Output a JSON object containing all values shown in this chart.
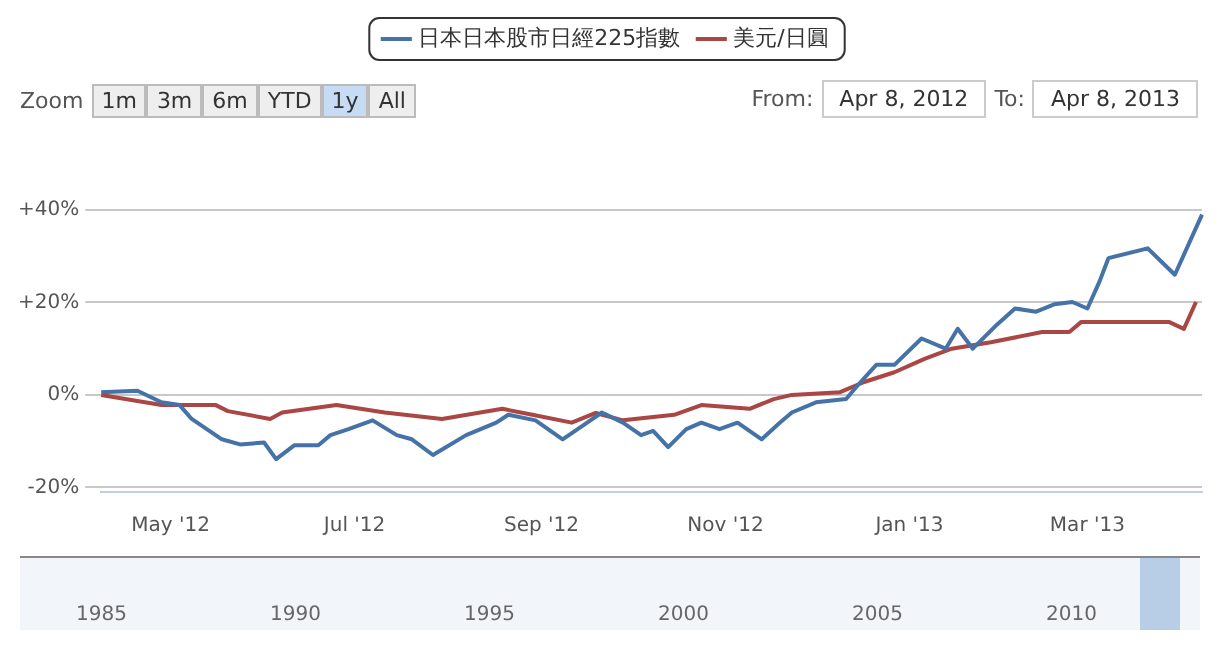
{
  "chart_data": {
    "type": "line",
    "legend": "top",
    "grid": "y",
    "marker": "none",
    "line_style": "solid",
    "xlim": [
      "2012-04-08",
      "2013-04-08"
    ],
    "xticks": [
      {
        "value": "2012-05-01",
        "label": "May '12"
      },
      {
        "value": "2012-07-01",
        "label": "Jul '12"
      },
      {
        "value": "2012-09-01",
        "label": "Sep '12"
      },
      {
        "value": "2012-11-01",
        "label": "Nov '12"
      },
      {
        "value": "2013-01-01",
        "label": "Jan '13"
      },
      {
        "value": "2013-03-01",
        "label": "Mar '13"
      }
    ],
    "ylim": [
      -21,
      40
    ],
    "yticks": [
      {
        "value": -20,
        "label": "-20%"
      },
      {
        "value": 0,
        "label": "0%"
      },
      {
        "value": 20,
        "label": "+20%"
      },
      {
        "value": 40,
        "label": "+40%"
      }
    ],
    "series": [
      {
        "name": "日本日本股市日經225指數",
        "color": "#4572a7",
        "x": [
          "2012-04-08",
          "2012-04-20",
          "2012-04-28",
          "2012-05-04",
          "2012-05-08",
          "2012-05-18",
          "2012-05-24",
          "2012-06-01",
          "2012-06-05",
          "2012-06-11",
          "2012-06-19",
          "2012-06-23",
          "2012-06-29",
          "2012-07-07",
          "2012-07-15",
          "2012-07-20",
          "2012-07-27",
          "2012-08-07",
          "2012-08-17",
          "2012-08-21",
          "2012-08-30",
          "2012-09-08",
          "2012-09-13",
          "2012-09-21",
          "2012-09-28",
          "2012-10-04",
          "2012-10-08",
          "2012-10-13",
          "2012-10-19",
          "2012-10-24",
          "2012-10-30",
          "2012-11-05",
          "2012-11-13",
          "2012-11-19",
          "2012-11-23",
          "2012-12-01",
          "2012-12-11",
          "2012-12-15",
          "2012-12-21",
          "2012-12-27",
          "2013-01-05",
          "2013-01-13",
          "2013-01-17",
          "2013-01-22",
          "2013-01-30",
          "2013-02-05",
          "2013-02-12",
          "2013-02-18",
          "2013-02-24",
          "2013-03-01",
          "2013-03-05",
          "2013-03-08",
          "2013-03-21",
          "2013-03-30",
          "2013-04-08"
        ],
        "values": [
          0.6,
          0.9,
          -1.6,
          -2.2,
          -5.2,
          -9.6,
          -10.7,
          -10.3,
          -13.9,
          -10.9,
          -10.9,
          -8.7,
          -7.4,
          -5.5,
          -8.7,
          -9.6,
          -13,
          -8.7,
          -6,
          -4.3,
          -5.5,
          -9.6,
          -7.4,
          -3.8,
          -6,
          -8.7,
          -7.8,
          -11.3,
          -7.4,
          -6,
          -7.4,
          -6,
          -9.6,
          -6,
          -3.8,
          -1.6,
          -0.9,
          2.2,
          6.5,
          6.5,
          12.2,
          10,
          14.3,
          10,
          15.2,
          18.7,
          18,
          19.6,
          20.1,
          18.7,
          24.5,
          29.6,
          31.7,
          26,
          39
        ]
      },
      {
        "name": "美元/日圓",
        "color": "#aa4643",
        "x": [
          "2012-04-08",
          "2012-04-28",
          "2012-05-16",
          "2012-05-20",
          "2012-06-03",
          "2012-06-07",
          "2012-06-25",
          "2012-07-11",
          "2012-07-30",
          "2012-08-19",
          "2012-08-29",
          "2012-09-11",
          "2012-09-19",
          "2012-09-28",
          "2012-10-15",
          "2012-10-24",
          "2012-11-09",
          "2012-11-17",
          "2012-11-23",
          "2012-12-09",
          "2012-12-17",
          "2012-12-27",
          "2013-01-06",
          "2013-01-15",
          "2013-01-28",
          "2013-02-14",
          "2013-02-23",
          "2013-02-27",
          "2013-03-28",
          "2013-04-02",
          "2013-04-06"
        ],
        "values": [
          0,
          -2.2,
          -2.2,
          -3.5,
          -5.2,
          -3.8,
          -2.2,
          -3.8,
          -5.2,
          -3,
          -4.3,
          -6,
          -3.9,
          -5.5,
          -4.3,
          -2.2,
          -3,
          -0.9,
          0,
          0.6,
          2.8,
          4.9,
          7.8,
          10,
          11.4,
          13.6,
          13.6,
          15.8,
          15.8,
          14.3,
          20.1
        ]
      }
    ],
    "annotations": [
      "Zoom",
      "1m",
      "3m",
      "6m",
      "YTD",
      "1y",
      "All",
      "From:",
      "Apr 8, 2012",
      "To:",
      "Apr 8, 2013",
      "1985",
      "1990",
      "1995",
      "2000",
      "2005",
      "2010"
    ]
  }
}
